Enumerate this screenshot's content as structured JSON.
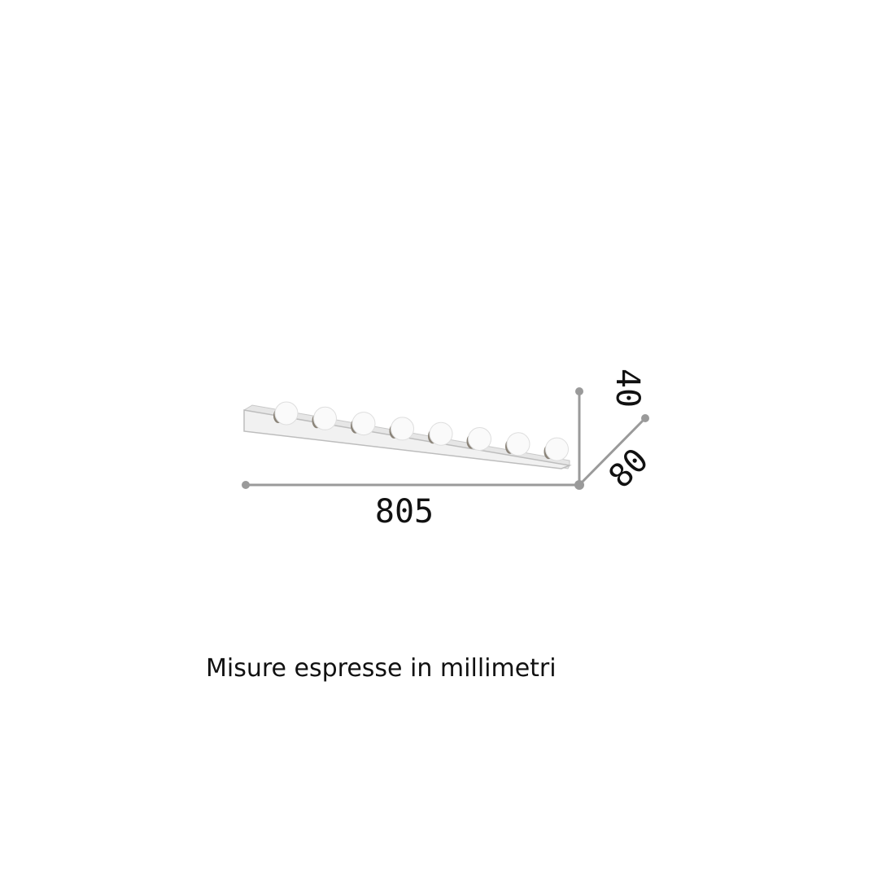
{
  "dimensions": {
    "width": "805",
    "height": "40",
    "depth": "80"
  },
  "caption": "Misure espresse in millimetri",
  "colors": {
    "dimension_line": "#9a9a9a",
    "text": "#111111"
  }
}
